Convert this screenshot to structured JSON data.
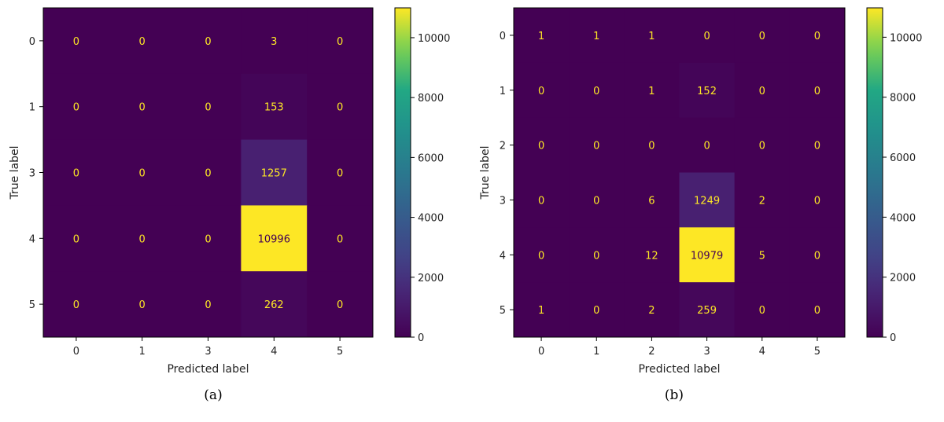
{
  "chart_data": [
    {
      "type": "heatmap",
      "caption": "(a)",
      "xlabel": "Predicted label",
      "ylabel": "True label",
      "x_categories": [
        "0",
        "1",
        "3",
        "4",
        "5"
      ],
      "y_categories": [
        "0",
        "1",
        "3",
        "4",
        "5"
      ],
      "values": [
        [
          0,
          0,
          0,
          3,
          0
        ],
        [
          0,
          0,
          0,
          153,
          0
        ],
        [
          0,
          0,
          0,
          1257,
          0
        ],
        [
          0,
          0,
          0,
          10996,
          0
        ],
        [
          0,
          0,
          0,
          262,
          0
        ]
      ],
      "colormap": "viridis",
      "colorbar": {
        "range": [
          0,
          10996
        ],
        "ticks": [
          0,
          2000,
          4000,
          6000,
          8000,
          10000
        ]
      }
    },
    {
      "type": "heatmap",
      "caption": "(b)",
      "xlabel": "Predicted label",
      "ylabel": "True label",
      "x_categories": [
        "0",
        "1",
        "2",
        "3",
        "4",
        "5"
      ],
      "y_categories": [
        "0",
        "1",
        "2",
        "3",
        "4",
        "5"
      ],
      "values": [
        [
          1,
          1,
          1,
          0,
          0,
          0
        ],
        [
          0,
          0,
          1,
          152,
          0,
          0
        ],
        [
          0,
          0,
          0,
          0,
          0,
          0
        ],
        [
          0,
          0,
          6,
          1249,
          2,
          0
        ],
        [
          0,
          0,
          12,
          10979,
          5,
          0
        ],
        [
          1,
          0,
          2,
          259,
          0,
          0
        ]
      ],
      "colormap": "viridis",
      "colorbar": {
        "range": [
          0,
          10979
        ],
        "ticks": [
          0,
          2000,
          4000,
          6000,
          8000,
          10000
        ]
      }
    }
  ]
}
